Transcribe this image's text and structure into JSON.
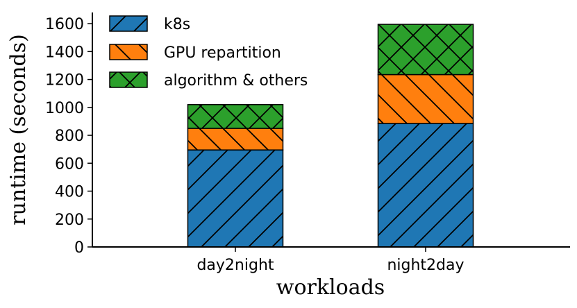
{
  "chart_data": {
    "type": "bar",
    "stacked": true,
    "categories": [
      "day2night",
      "night2day"
    ],
    "series": [
      {
        "name": "k8s",
        "values": [
          695,
          885
        ],
        "color": "#1f77b4",
        "hatch": "/"
      },
      {
        "name": "GPU repartition",
        "values": [
          155,
          350
        ],
        "color": "#ff7f0e",
        "hatch": "\\"
      },
      {
        "name": "algorithm & others",
        "values": [
          170,
          360
        ],
        "color": "#2ca02c",
        "hatch": "x"
      }
    ],
    "xlabel": "workloads",
    "ylabel": "runtime (seconds)",
    "ylim": [
      0,
      1680
    ],
    "yticks": [
      0,
      200,
      400,
      600,
      800,
      1000,
      1200,
      1400,
      1600
    ],
    "legend_position": "top-left",
    "grid": false
  }
}
